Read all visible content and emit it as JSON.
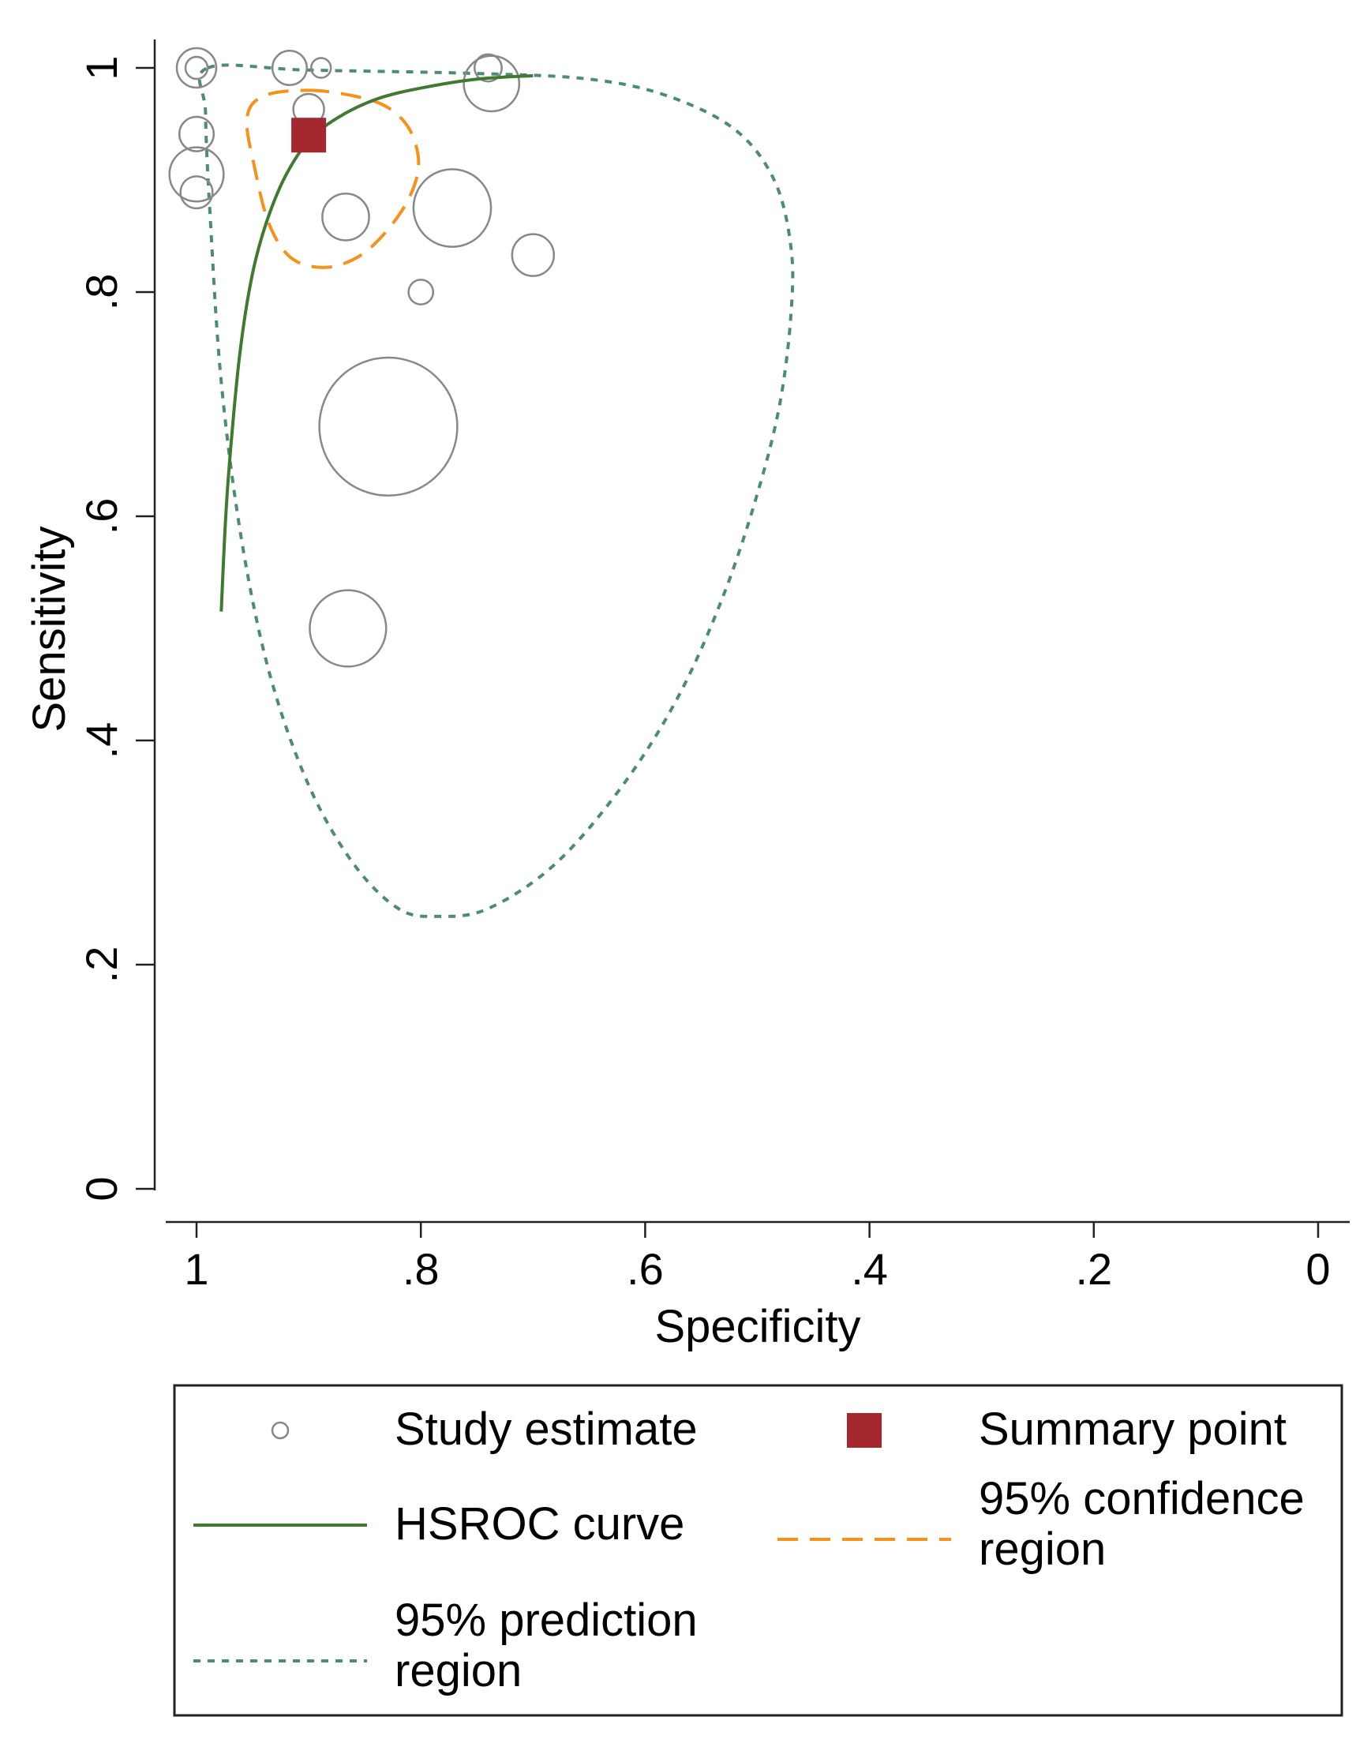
{
  "chart_data": {
    "type": "scatter",
    "title": "",
    "xlabel": "Specificity",
    "ylabel": "Sensitivity",
    "xlim": [
      1,
      0
    ],
    "ylim": [
      0,
      1
    ],
    "x_reversed": true,
    "grid": false,
    "x_ticks": [
      1,
      0.8,
      0.6,
      0.4,
      0.2,
      0
    ],
    "x_tick_labels": [
      "1",
      ".8",
      ".6",
      ".4",
      ".2",
      "0"
    ],
    "y_ticks": [
      0,
      0.2,
      0.4,
      0.6,
      0.8,
      1
    ],
    "y_tick_labels": [
      "0",
      ".2",
      ".4",
      ".6",
      ".8",
      "1"
    ],
    "series": [
      {
        "name": "Study estimate",
        "kind": "bubble",
        "color": "#888888",
        "points": [
          {
            "spec": 1.0,
            "sens": 1.0,
            "weight": 3.2
          },
          {
            "spec": 1.0,
            "sens": 1.0,
            "weight": 1.8
          },
          {
            "spec": 0.917,
            "sens": 1.0,
            "weight": 2.8
          },
          {
            "spec": 0.889,
            "sens": 1.0,
            "weight": 1.6
          },
          {
            "spec": 0.74,
            "sens": 1.0,
            "weight": 2.2
          },
          {
            "spec": 0.737,
            "sens": 0.986,
            "weight": 4.5
          },
          {
            "spec": 0.9,
            "sens": 0.963,
            "weight": 2.5
          },
          {
            "spec": 1.0,
            "sens": 0.941,
            "weight": 2.8
          },
          {
            "spec": 1.0,
            "sens": 0.905,
            "weight": 4.4
          },
          {
            "spec": 1.0,
            "sens": 0.889,
            "weight": 2.6
          },
          {
            "spec": 0.867,
            "sens": 0.867,
            "weight": 3.8
          },
          {
            "spec": 0.772,
            "sens": 0.875,
            "weight": 6.3
          },
          {
            "spec": 0.7,
            "sens": 0.833,
            "weight": 3.4
          },
          {
            "spec": 0.8,
            "sens": 0.8,
            "weight": 2.0
          },
          {
            "spec": 0.829,
            "sens": 0.68,
            "weight": 11.2
          },
          {
            "spec": 0.865,
            "sens": 0.5,
            "weight": 6.2
          }
        ]
      },
      {
        "name": "Summary point",
        "kind": "marker",
        "color": "#a3282f",
        "points": [
          {
            "spec": 0.9,
            "sens": 0.94
          }
        ]
      },
      {
        "name": "HSROC curve",
        "kind": "line",
        "color": "#3f7a30",
        "points": [
          {
            "spec": 0.978,
            "sens": 0.515
          },
          {
            "spec": 0.975,
            "sens": 0.58
          },
          {
            "spec": 0.972,
            "sens": 0.63
          },
          {
            "spec": 0.967,
            "sens": 0.69
          },
          {
            "spec": 0.962,
            "sens": 0.74
          },
          {
            "spec": 0.955,
            "sens": 0.79
          },
          {
            "spec": 0.947,
            "sens": 0.83
          },
          {
            "spec": 0.935,
            "sens": 0.87
          },
          {
            "spec": 0.92,
            "sens": 0.905
          },
          {
            "spec": 0.9,
            "sens": 0.935
          },
          {
            "spec": 0.875,
            "sens": 0.955
          },
          {
            "spec": 0.84,
            "sens": 0.972
          },
          {
            "spec": 0.8,
            "sens": 0.982
          },
          {
            "spec": 0.75,
            "sens": 0.99
          },
          {
            "spec": 0.7,
            "sens": 0.993
          }
        ]
      },
      {
        "name": "95% confidence region",
        "kind": "region",
        "color": "#f5921b",
        "closed": true,
        "points": [
          {
            "spec": 0.9,
            "sens": 0.98
          },
          {
            "spec": 0.86,
            "sens": 0.975
          },
          {
            "spec": 0.83,
            "sens": 0.965
          },
          {
            "spec": 0.81,
            "sens": 0.945
          },
          {
            "spec": 0.802,
            "sens": 0.915
          },
          {
            "spec": 0.81,
            "sens": 0.885
          },
          {
            "spec": 0.83,
            "sens": 0.855
          },
          {
            "spec": 0.855,
            "sens": 0.832
          },
          {
            "spec": 0.885,
            "sens": 0.822
          },
          {
            "spec": 0.915,
            "sens": 0.83
          },
          {
            "spec": 0.935,
            "sens": 0.86
          },
          {
            "spec": 0.948,
            "sens": 0.91
          },
          {
            "spec": 0.955,
            "sens": 0.955
          },
          {
            "spec": 0.94,
            "sens": 0.975
          }
        ]
      },
      {
        "name": "95% prediction region",
        "kind": "region",
        "color": "#4e8b74",
        "closed": true,
        "points": [
          {
            "spec": 0.99,
            "sens": 1.0
          },
          {
            "spec": 0.9,
            "sens": 0.998
          },
          {
            "spec": 0.75,
            "sens": 0.995
          },
          {
            "spec": 0.65,
            "sens": 0.99
          },
          {
            "spec": 0.58,
            "sens": 0.975
          },
          {
            "spec": 0.52,
            "sens": 0.945
          },
          {
            "spec": 0.485,
            "sens": 0.9
          },
          {
            "spec": 0.47,
            "sens": 0.84
          },
          {
            "spec": 0.47,
            "sens": 0.78
          },
          {
            "spec": 0.48,
            "sens": 0.7
          },
          {
            "spec": 0.5,
            "sens": 0.62
          },
          {
            "spec": 0.53,
            "sens": 0.53
          },
          {
            "spec": 0.57,
            "sens": 0.44
          },
          {
            "spec": 0.62,
            "sens": 0.36
          },
          {
            "spec": 0.68,
            "sens": 0.29
          },
          {
            "spec": 0.74,
            "sens": 0.25
          },
          {
            "spec": 0.785,
            "sens": 0.243
          },
          {
            "spec": 0.82,
            "sens": 0.25
          },
          {
            "spec": 0.86,
            "sens": 0.29
          },
          {
            "spec": 0.9,
            "sens": 0.36
          },
          {
            "spec": 0.935,
            "sens": 0.46
          },
          {
            "spec": 0.96,
            "sens": 0.58
          },
          {
            "spec": 0.978,
            "sens": 0.72
          },
          {
            "spec": 0.988,
            "sens": 0.87
          },
          {
            "spec": 0.992,
            "sens": 0.96
          }
        ]
      }
    ],
    "legend": {
      "placement": "bottom",
      "entries": [
        {
          "key": "study",
          "label_lines": [
            "Study estimate"
          ]
        },
        {
          "key": "summary",
          "label_lines": [
            "Summary point"
          ]
        },
        {
          "key": "hsroc",
          "label_lines": [
            "HSROC curve"
          ]
        },
        {
          "key": "conf",
          "label_lines": [
            "95% confidence",
            "region"
          ]
        },
        {
          "key": "pred",
          "label_lines": [
            "95% prediction",
            "region"
          ]
        }
      ]
    }
  }
}
